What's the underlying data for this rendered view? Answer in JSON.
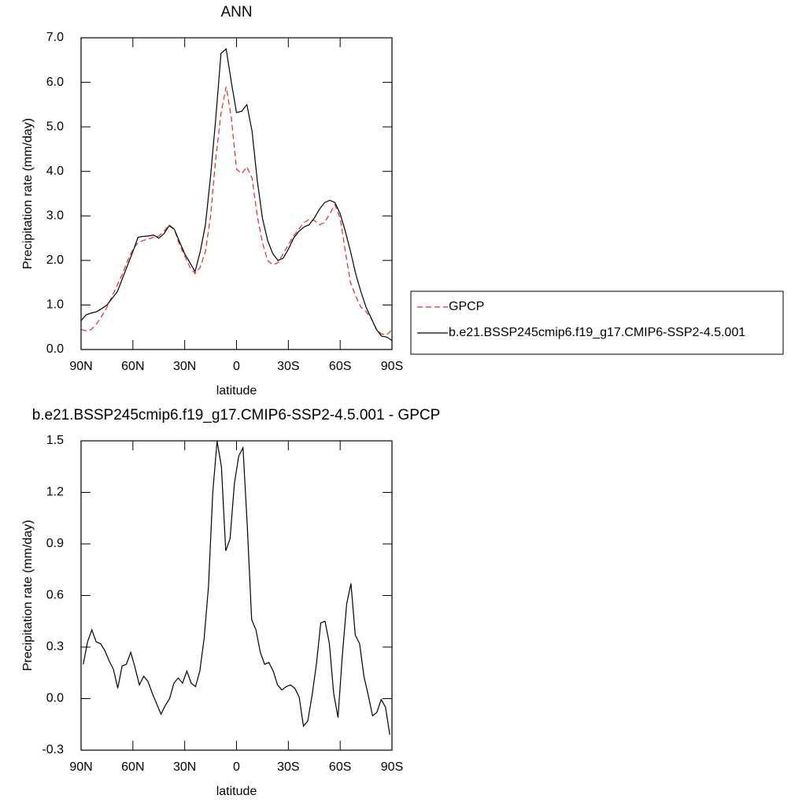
{
  "chart_data": [
    {
      "type": "line",
      "title": "ANN",
      "x_label": "latitude",
      "y_label": "Precipitation rate (mm/day)",
      "x": [
        90,
        87,
        84,
        81,
        78,
        75,
        72,
        69,
        66,
        63,
        60,
        57,
        54,
        51,
        48,
        45,
        42,
        39,
        36,
        33,
        30,
        27,
        24,
        21,
        18,
        15,
        12,
        9,
        6,
        3,
        0,
        -3,
        -6,
        -9,
        -12,
        -15,
        -18,
        -21,
        -24,
        -27,
        -30,
        -33,
        -36,
        -39,
        -42,
        -45,
        -48,
        -51,
        -54,
        -57,
        -60,
        -63,
        -66,
        -69,
        -72,
        -75,
        -78,
        -81,
        -84,
        -87,
        -90
      ],
      "series": [
        {
          "name": "GPCP",
          "color": "#e8262a",
          "line_style": "dashed",
          "values": [
            0.45,
            0.42,
            0.45,
            0.58,
            0.75,
            0.95,
            1.2,
            1.45,
            1.7,
            2.0,
            2.25,
            2.4,
            2.45,
            2.48,
            2.52,
            2.55,
            2.65,
            2.8,
            2.7,
            2.35,
            2.1,
            1.85,
            1.7,
            1.85,
            2.2,
            3.0,
            4.3,
            5.3,
            5.9,
            5.2,
            4.05,
            3.95,
            4.1,
            3.85,
            3.0,
            2.4,
            2.0,
            1.9,
            1.95,
            2.15,
            2.35,
            2.55,
            2.7,
            2.85,
            2.92,
            2.9,
            2.8,
            2.85,
            3.05,
            3.25,
            2.95,
            2.2,
            1.5,
            1.2,
            0.95,
            0.85,
            0.7,
            0.45,
            0.35,
            0.33,
            0.45
          ]
        },
        {
          "name": "b.e21.BSSP245cmip6.f19_g17.CMIP6-SSP2-4.5.001",
          "color": "#000000",
          "line_style": "solid",
          "values": [
            0.65,
            0.78,
            0.82,
            0.85,
            0.92,
            1.0,
            1.15,
            1.3,
            1.6,
            1.9,
            2.2,
            2.52,
            2.54,
            2.55,
            2.57,
            2.5,
            2.6,
            2.78,
            2.7,
            2.42,
            2.15,
            1.95,
            1.75,
            2.2,
            2.8,
            3.9,
            5.2,
            6.65,
            6.75,
            6.0,
            5.32,
            5.35,
            5.5,
            4.9,
            3.8,
            2.95,
            2.45,
            2.15,
            2.0,
            2.05,
            2.25,
            2.5,
            2.65,
            2.75,
            2.8,
            2.95,
            3.15,
            3.3,
            3.35,
            3.3,
            3.05,
            2.65,
            2.2,
            1.7,
            1.3,
            0.95,
            0.7,
            0.45,
            0.3,
            0.28,
            0.2
          ]
        }
      ],
      "xlim": [
        90,
        -90
      ],
      "xticks": [
        {
          "value": 90,
          "label": "90N"
        },
        {
          "value": 60,
          "label": "60N"
        },
        {
          "value": 30,
          "label": "30N"
        },
        0,
        {
          "value": -30,
          "label": "30S"
        },
        {
          "value": -60,
          "label": "60S"
        },
        {
          "value": -90,
          "label": "90S"
        }
      ],
      "ylim": [
        0,
        7
      ],
      "yticks": [
        {
          "value": 0,
          "label": "0.0"
        },
        {
          "value": 1,
          "label": "1.0"
        },
        {
          "value": 2,
          "label": "2.0"
        },
        {
          "value": 3,
          "label": "3.0"
        },
        {
          "value": 4,
          "label": "4.0"
        },
        {
          "value": 5,
          "label": "5.0"
        },
        {
          "value": 6,
          "label": "6.0"
        },
        {
          "value": 7,
          "label": "7.0"
        }
      ],
      "legend": "right",
      "grid": false
    },
    {
      "type": "line",
      "title": "b.e21.BSSP245cmip6.f19_g17.CMIP6-SSP2-4.5.001 - GPCP",
      "x_label": "latitude",
      "y_label": "Precipitation rate (mm/day)",
      "x": [
        88.75,
        86.25,
        83.75,
        81.25,
        78.75,
        76.25,
        73.75,
        71.25,
        68.75,
        66.25,
        63.75,
        61.25,
        58.75,
        56.25,
        53.75,
        51.25,
        48.75,
        46.25,
        43.75,
        41.25,
        38.75,
        36.25,
        33.75,
        31.25,
        28.75,
        26.25,
        23.75,
        21.25,
        18.75,
        16.25,
        13.75,
        11.25,
        8.75,
        6.25,
        3.75,
        1.25,
        -1.25,
        -3.75,
        -6.25,
        -8.75,
        -11.25,
        -13.75,
        -16.25,
        -18.75,
        -21.25,
        -23.75,
        -26.25,
        -28.75,
        -31.25,
        -33.75,
        -36.25,
        -38.75,
        -41.25,
        -43.75,
        -46.25,
        -48.75,
        -51.25,
        -53.75,
        -56.25,
        -58.75,
        -61.25,
        -63.75,
        -66.25,
        -68.75,
        -71.25,
        -73.75,
        -76.25,
        -78.75,
        -81.25,
        -83.75,
        -86.25,
        -88.75
      ],
      "series": [
        {
          "color": "#000000",
          "line_style": "solid",
          "values": [
            0.2,
            0.33,
            0.4,
            0.33,
            0.32,
            0.28,
            0.22,
            0.17,
            0.06,
            0.19,
            0.2,
            0.27,
            0.18,
            0.08,
            0.13,
            0.1,
            0.03,
            -0.03,
            -0.09,
            -0.04,
            0.0,
            0.09,
            0.12,
            0.09,
            0.16,
            0.09,
            0.07,
            0.16,
            0.35,
            0.65,
            1.2,
            1.5,
            1.35,
            0.86,
            0.93,
            1.25,
            1.41,
            1.46,
            1.0,
            0.46,
            0.4,
            0.27,
            0.2,
            0.21,
            0.16,
            0.08,
            0.05,
            0.07,
            0.08,
            0.06,
            0.01,
            -0.16,
            -0.13,
            0.02,
            0.2,
            0.44,
            0.45,
            0.32,
            0.03,
            -0.11,
            0.25,
            0.55,
            0.67,
            0.37,
            0.32,
            0.13,
            0.02,
            -0.1,
            -0.08,
            -0.005,
            -0.05,
            -0.21
          ]
        }
      ],
      "xlim": [
        90,
        -90
      ],
      "xticks": [
        {
          "value": 90,
          "label": "90N"
        },
        {
          "value": 60,
          "label": "60N"
        },
        {
          "value": 30,
          "label": "30N"
        },
        0,
        {
          "value": -30,
          "label": "30S"
        },
        {
          "value": -60,
          "label": "60S"
        },
        {
          "value": -90,
          "label": "90S"
        }
      ],
      "ylim": [
        -0.3,
        1.5
      ],
      "yticks": [
        -0.3,
        {
          "value": 0,
          "label": "0.0"
        },
        0.3,
        0.6,
        0.9,
        1.2,
        1.5
      ],
      "grid": false
    }
  ]
}
